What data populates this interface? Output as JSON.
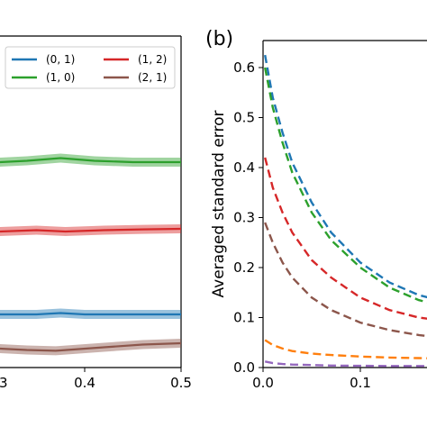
{
  "chart_data": [
    {
      "panel_label": "",
      "type": "line",
      "xlim": [
        0.3,
        0.5
      ],
      "xticks": [
        "0.4",
        "0.5"
      ],
      "grid": false,
      "legend": {
        "position": "top-right",
        "columns": 2,
        "entries": [
          {
            "label": "(0, 1)",
            "color": "#1f77b4"
          },
          {
            "label": "(1, 2)",
            "color": "#d62728"
          },
          {
            "label": "(1, 0)",
            "color": "#2ca02c"
          },
          {
            "label": "(2, 1)",
            "color": "#8c564b"
          }
        ]
      },
      "series": [
        {
          "name": "(1, 0)",
          "color": "#2ca02c",
          "x": [
            0.3,
            0.34,
            0.375,
            0.41,
            0.45,
            0.5
          ],
          "y": [
            0.8,
            0.805,
            0.815,
            0.805,
            0.8,
            0.8
          ]
        },
        {
          "name": "(1, 2)",
          "color": "#d62728",
          "x": [
            0.3,
            0.35,
            0.38,
            0.42,
            0.46,
            0.5
          ],
          "y": [
            0.52,
            0.525,
            0.52,
            0.525,
            0.528,
            0.53
          ]
        },
        {
          "name": "(0, 1)",
          "color": "#1f77b4",
          "x": [
            0.3,
            0.35,
            0.375,
            0.4,
            0.45,
            0.5
          ],
          "y": [
            0.22,
            0.22,
            0.225,
            0.22,
            0.22,
            0.22
          ]
        },
        {
          "name": "(2, 1)",
          "color": "#8c564b",
          "x": [
            0.3,
            0.34,
            0.37,
            0.42,
            0.46,
            0.5
          ],
          "y": [
            0.09,
            0.085,
            0.082,
            0.095,
            0.105,
            0.11
          ]
        }
      ],
      "ylim": [
        0,
        1
      ],
      "partial_left_tick": "3"
    },
    {
      "panel_label": "(b)",
      "type": "line",
      "ylabel": "Averaged standard error",
      "xlim": [
        0,
        0.18
      ],
      "ylim": [
        0,
        0.65
      ],
      "xticks": [
        "0.0",
        "0.1"
      ],
      "yticks": [
        "0.0",
        "0.1",
        "0.2",
        "0.3",
        "0.4",
        "0.5",
        "0.6"
      ],
      "grid": false,
      "line_style": "dashed",
      "series": [
        {
          "color": "#1f77b4",
          "x": [
            0.002,
            0.01,
            0.02,
            0.03,
            0.05,
            0.07,
            0.1,
            0.13,
            0.16,
            0.18
          ],
          "y": [
            0.625,
            0.54,
            0.47,
            0.41,
            0.33,
            0.27,
            0.21,
            0.17,
            0.145,
            0.135
          ]
        },
        {
          "color": "#2ca02c",
          "x": [
            0.002,
            0.01,
            0.02,
            0.03,
            0.05,
            0.07,
            0.1,
            0.13,
            0.16,
            0.18
          ],
          "y": [
            0.6,
            0.52,
            0.45,
            0.39,
            0.31,
            0.255,
            0.2,
            0.16,
            0.135,
            0.125
          ]
        },
        {
          "color": "#d62728",
          "x": [
            0.002,
            0.01,
            0.02,
            0.03,
            0.05,
            0.07,
            0.1,
            0.13,
            0.16,
            0.18
          ],
          "y": [
            0.42,
            0.36,
            0.31,
            0.27,
            0.215,
            0.18,
            0.14,
            0.115,
            0.1,
            0.095
          ]
        },
        {
          "color": "#8c564b",
          "x": [
            0.002,
            0.01,
            0.02,
            0.03,
            0.05,
            0.07,
            0.1,
            0.13,
            0.16,
            0.18
          ],
          "y": [
            0.29,
            0.25,
            0.21,
            0.18,
            0.14,
            0.115,
            0.09,
            0.075,
            0.065,
            0.06
          ]
        },
        {
          "color": "#ff7f0e",
          "x": [
            0.002,
            0.01,
            0.02,
            0.03,
            0.05,
            0.07,
            0.1,
            0.13,
            0.16,
            0.18
          ],
          "y": [
            0.055,
            0.045,
            0.038,
            0.033,
            0.028,
            0.025,
            0.022,
            0.02,
            0.019,
            0.018
          ]
        },
        {
          "color": "#9467bd",
          "x": [
            0.002,
            0.01,
            0.02,
            0.03,
            0.05,
            0.07,
            0.1,
            0.13,
            0.16,
            0.18
          ],
          "y": [
            0.012,
            0.009,
            0.007,
            0.006,
            0.005,
            0.004,
            0.0035,
            0.003,
            0.003,
            0.003
          ]
        }
      ]
    }
  ]
}
